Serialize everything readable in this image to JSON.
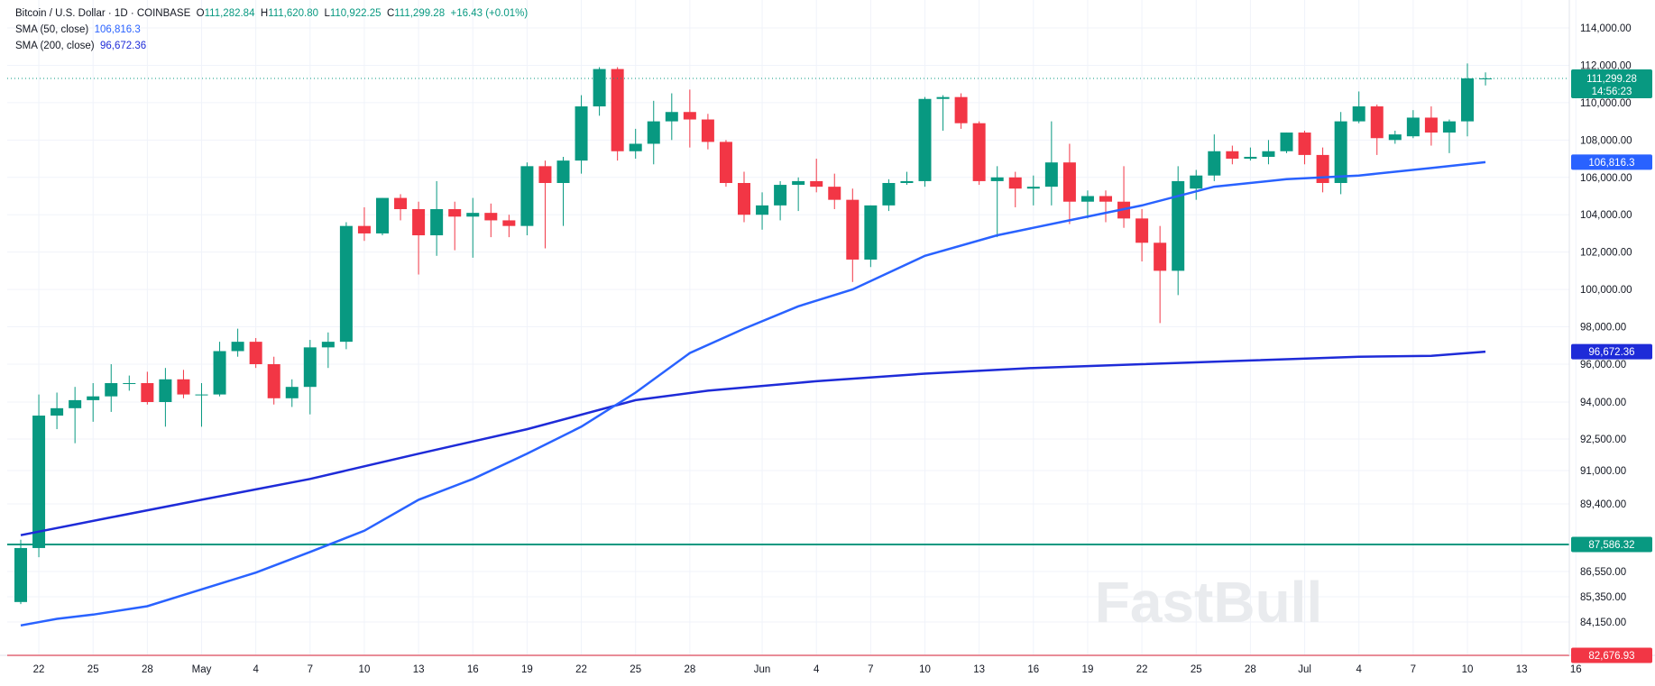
{
  "header": {
    "symbol": "Bitcoin / U.S. Dollar · 1D · COINBASE",
    "o_label": "O",
    "o_value": "111,282.84",
    "h_label": "H",
    "h_value": "111,620.80",
    "l_label": "L",
    "l_value": "110,922.25",
    "c_label": "C",
    "c_value": "111,299.28",
    "change": "+16.43 (+0.01%)",
    "sma50_label": "SMA (50, close)",
    "sma50_value": "106,816.3",
    "sma200_label": "SMA (200, close)",
    "sma200_value": "96,672.36"
  },
  "price_tag": {
    "price": "111,299.28",
    "countdown": "14:56:23"
  },
  "watermark": "FastBull",
  "colors": {
    "up": "#089981",
    "down": "#f23645",
    "sma50": "#2962ff",
    "sma200": "#1e2bd8",
    "hline_green": "#089981",
    "hline_red": "#f23645",
    "grid": "#f0f3fa"
  },
  "chart_data": {
    "type": "candlestick",
    "title": "Bitcoin / U.S. Dollar · 1D · COINBASE",
    "y_ticks": [
      {
        "v": 84150,
        "label": "84,150.00"
      },
      {
        "v": 85350,
        "label": "85,350.00"
      },
      {
        "v": 86550,
        "label": "86,550.00"
      },
      {
        "v": 89400,
        "label": "89,400.00"
      },
      {
        "v": 91000,
        "label": "91,000.00"
      },
      {
        "v": 92500,
        "label": "92,500.00"
      },
      {
        "v": 94000,
        "label": "94,000.00"
      },
      {
        "v": 96000,
        "label": "96,000.00"
      },
      {
        "v": 98000,
        "label": "98,000.00"
      },
      {
        "v": 100000,
        "label": "100,000.00"
      },
      {
        "v": 102000,
        "label": "102,000.00"
      },
      {
        "v": 104000,
        "label": "104,000.00"
      },
      {
        "v": 106000,
        "label": "106,000.00"
      },
      {
        "v": 108000,
        "label": "108,000.00"
      },
      {
        "v": 110000,
        "label": "110,000.00"
      },
      {
        "v": 112000,
        "label": "112,000.00"
      },
      {
        "v": 114000,
        "label": "114,000.00"
      }
    ],
    "x_ticks": [
      {
        "i": 1,
        "label": "22"
      },
      {
        "i": 4,
        "label": "25"
      },
      {
        "i": 7,
        "label": "28"
      },
      {
        "i": 10,
        "label": "May"
      },
      {
        "i": 13,
        "label": "4"
      },
      {
        "i": 16,
        "label": "7"
      },
      {
        "i": 19,
        "label": "10"
      },
      {
        "i": 22,
        "label": "13"
      },
      {
        "i": 25,
        "label": "16"
      },
      {
        "i": 28,
        "label": "19"
      },
      {
        "i": 31,
        "label": "22"
      },
      {
        "i": 34,
        "label": "25"
      },
      {
        "i": 37,
        "label": "28"
      },
      {
        "i": 41,
        "label": "Jun"
      },
      {
        "i": 44,
        "label": "4"
      },
      {
        "i": 47,
        "label": "7"
      },
      {
        "i": 50,
        "label": "10"
      },
      {
        "i": 53,
        "label": "13"
      },
      {
        "i": 56,
        "label": "16"
      },
      {
        "i": 59,
        "label": "19"
      },
      {
        "i": 62,
        "label": "22"
      },
      {
        "i": 65,
        "label": "25"
      },
      {
        "i": 68,
        "label": "28"
      },
      {
        "i": 71,
        "label": "Jul"
      },
      {
        "i": 74,
        "label": "4"
      },
      {
        "i": 77,
        "label": "7"
      },
      {
        "i": 80,
        "label": "10"
      },
      {
        "i": 83,
        "label": "13"
      },
      {
        "i": 86,
        "label": "16"
      }
    ],
    "candles": [
      {
        "o": 85100,
        "h": 87800,
        "l": 85000,
        "c": 87450
      },
      {
        "o": 87450,
        "h": 94400,
        "l": 87100,
        "c": 93450
      },
      {
        "o": 93450,
        "h": 94500,
        "l": 92900,
        "c": 93750
      },
      {
        "o": 93750,
        "h": 94800,
        "l": 92300,
        "c": 94100
      },
      {
        "o": 94100,
        "h": 95000,
        "l": 93200,
        "c": 94300
      },
      {
        "o": 94300,
        "h": 96000,
        "l": 93600,
        "c": 95000
      },
      {
        "o": 95000,
        "h": 95400,
        "l": 94600,
        "c": 95000
      },
      {
        "o": 95000,
        "h": 95600,
        "l": 93900,
        "c": 94000
      },
      {
        "o": 94000,
        "h": 95800,
        "l": 93000,
        "c": 95200
      },
      {
        "o": 95200,
        "h": 95700,
        "l": 94200,
        "c": 94400
      },
      {
        "o": 94400,
        "h": 95000,
        "l": 93000,
        "c": 94400
      },
      {
        "o": 94400,
        "h": 97200,
        "l": 94300,
        "c": 96700
      },
      {
        "o": 96700,
        "h": 97900,
        "l": 96400,
        "c": 97200
      },
      {
        "o": 97200,
        "h": 97400,
        "l": 95800,
        "c": 96000
      },
      {
        "o": 96000,
        "h": 96400,
        "l": 93900,
        "c": 94200
      },
      {
        "o": 94200,
        "h": 95200,
        "l": 93800,
        "c": 94800
      },
      {
        "o": 94800,
        "h": 97300,
        "l": 93500,
        "c": 96900
      },
      {
        "o": 96900,
        "h": 97700,
        "l": 95800,
        "c": 97200
      },
      {
        "o": 97200,
        "h": 103600,
        "l": 96800,
        "c": 103400
      },
      {
        "o": 103400,
        "h": 104400,
        "l": 102600,
        "c": 103000
      },
      {
        "o": 103000,
        "h": 104900,
        "l": 102900,
        "c": 104900
      },
      {
        "o": 104900,
        "h": 105100,
        "l": 103700,
        "c": 104300
      },
      {
        "o": 104300,
        "h": 104700,
        "l": 100800,
        "c": 102900
      },
      {
        "o": 102900,
        "h": 105800,
        "l": 101800,
        "c": 104300
      },
      {
        "o": 104300,
        "h": 104700,
        "l": 102100,
        "c": 103900
      },
      {
        "o": 103900,
        "h": 104900,
        "l": 101700,
        "c": 104100
      },
      {
        "o": 104100,
        "h": 104600,
        "l": 102800,
        "c": 103700
      },
      {
        "o": 103700,
        "h": 104000,
        "l": 102800,
        "c": 103400
      },
      {
        "o": 103400,
        "h": 106800,
        "l": 102900,
        "c": 106600
      },
      {
        "o": 106600,
        "h": 106900,
        "l": 102200,
        "c": 105700
      },
      {
        "o": 105700,
        "h": 107100,
        "l": 103400,
        "c": 106900
      },
      {
        "o": 106900,
        "h": 110400,
        "l": 106200,
        "c": 109800
      },
      {
        "o": 109800,
        "h": 111900,
        "l": 109300,
        "c": 111800
      },
      {
        "o": 111800,
        "h": 111900,
        "l": 106900,
        "c": 107400
      },
      {
        "o": 107400,
        "h": 108600,
        "l": 107000,
        "c": 107800
      },
      {
        "o": 107800,
        "h": 110100,
        "l": 106700,
        "c": 109000
      },
      {
        "o": 109000,
        "h": 110500,
        "l": 108000,
        "c": 109500
      },
      {
        "o": 109500,
        "h": 110700,
        "l": 107600,
        "c": 109100
      },
      {
        "o": 109100,
        "h": 109400,
        "l": 107500,
        "c": 107900
      },
      {
        "o": 107900,
        "h": 108000,
        "l": 105500,
        "c": 105700
      },
      {
        "o": 105700,
        "h": 106300,
        "l": 103600,
        "c": 104000
      },
      {
        "o": 104000,
        "h": 105200,
        "l": 103200,
        "c": 104500
      },
      {
        "o": 104500,
        "h": 105800,
        "l": 103700,
        "c": 105600
      },
      {
        "o": 105600,
        "h": 106000,
        "l": 104200,
        "c": 105800
      },
      {
        "o": 105800,
        "h": 107000,
        "l": 105200,
        "c": 105500
      },
      {
        "o": 105500,
        "h": 106200,
        "l": 104300,
        "c": 104800
      },
      {
        "o": 104800,
        "h": 105400,
        "l": 100400,
        "c": 101600
      },
      {
        "o": 101600,
        "h": 104500,
        "l": 101200,
        "c": 104500
      },
      {
        "o": 104500,
        "h": 105900,
        "l": 104200,
        "c": 105700
      },
      {
        "o": 105700,
        "h": 106300,
        "l": 105600,
        "c": 105800
      },
      {
        "o": 105800,
        "h": 110300,
        "l": 105500,
        "c": 110200
      },
      {
        "o": 110200,
        "h": 110400,
        "l": 108500,
        "c": 110300
      },
      {
        "o": 110300,
        "h": 110500,
        "l": 108600,
        "c": 108900
      },
      {
        "o": 108900,
        "h": 109000,
        "l": 105600,
        "c": 105800
      },
      {
        "o": 105800,
        "h": 106600,
        "l": 102800,
        "c": 106000
      },
      {
        "o": 106000,
        "h": 106300,
        "l": 104400,
        "c": 105400
      },
      {
        "o": 105400,
        "h": 106100,
        "l": 104500,
        "c": 105500
      },
      {
        "o": 105500,
        "h": 109000,
        "l": 104500,
        "c": 106800
      },
      {
        "o": 106800,
        "h": 107800,
        "l": 103500,
        "c": 104700
      },
      {
        "o": 104700,
        "h": 105300,
        "l": 103800,
        "c": 105000
      },
      {
        "o": 105000,
        "h": 105300,
        "l": 103600,
        "c": 104700
      },
      {
        "o": 104700,
        "h": 106600,
        "l": 103300,
        "c": 103800
      },
      {
        "o": 103800,
        "h": 104300,
        "l": 101500,
        "c": 102500
      },
      {
        "o": 102500,
        "h": 103400,
        "l": 98200,
        "c": 101000
      },
      {
        "o": 101000,
        "h": 106600,
        "l": 99700,
        "c": 105800
      },
      {
        "o": 105400,
        "h": 106400,
        "l": 104800,
        "c": 106100
      },
      {
        "o": 106100,
        "h": 108300,
        "l": 105800,
        "c": 107400
      },
      {
        "o": 107400,
        "h": 107700,
        "l": 106700,
        "c": 107000
      },
      {
        "o": 107000,
        "h": 107600,
        "l": 106900,
        "c": 107100
      },
      {
        "o": 107100,
        "h": 108000,
        "l": 106700,
        "c": 107400
      },
      {
        "o": 107400,
        "h": 108400,
        "l": 107300,
        "c": 108400
      },
      {
        "o": 108400,
        "h": 108500,
        "l": 106700,
        "c": 107200
      },
      {
        "o": 107200,
        "h": 107600,
        "l": 105200,
        "c": 105700
      },
      {
        "o": 105700,
        "h": 109500,
        "l": 105100,
        "c": 109000
      },
      {
        "o": 109000,
        "h": 110600,
        "l": 108900,
        "c": 109800
      },
      {
        "o": 109800,
        "h": 109900,
        "l": 107200,
        "c": 108100
      },
      {
        "o": 108000,
        "h": 108500,
        "l": 107800,
        "c": 108300
      },
      {
        "o": 108200,
        "h": 109600,
        "l": 108100,
        "c": 109200
      },
      {
        "o": 109200,
        "h": 109800,
        "l": 107700,
        "c": 108400
      },
      {
        "o": 108400,
        "h": 109100,
        "l": 107300,
        "c": 109000
      },
      {
        "o": 109000,
        "h": 112100,
        "l": 108200,
        "c": 111300
      },
      {
        "o": 111283,
        "h": 111621,
        "l": 110922,
        "c": 111299
      }
    ],
    "sma50": [
      [
        0,
        84000
      ],
      [
        2,
        84300
      ],
      [
        4,
        84500
      ],
      [
        7,
        84900
      ],
      [
        10,
        85700
      ],
      [
        13,
        86500
      ],
      [
        16,
        87300
      ],
      [
        19,
        88200
      ],
      [
        22,
        89600
      ],
      [
        25,
        90600
      ],
      [
        28,
        91800
      ],
      [
        31,
        93000
      ],
      [
        34,
        94500
      ],
      [
        37,
        96600
      ],
      [
        40,
        97900
      ],
      [
        43,
        99100
      ],
      [
        46,
        100000
      ],
      [
        50,
        101800
      ],
      [
        54,
        102900
      ],
      [
        58,
        103700
      ],
      [
        62,
        104500
      ],
      [
        66,
        105500
      ],
      [
        70,
        105900
      ],
      [
        74,
        106100
      ],
      [
        78,
        106500
      ],
      [
        81,
        106816
      ]
    ],
    "sma200": [
      [
        0,
        88000
      ],
      [
        5,
        88800
      ],
      [
        10,
        89600
      ],
      [
        16,
        90600
      ],
      [
        22,
        91800
      ],
      [
        28,
        92900
      ],
      [
        34,
        94100
      ],
      [
        38,
        94600
      ],
      [
        44,
        95100
      ],
      [
        50,
        95500
      ],
      [
        56,
        95800
      ],
      [
        62,
        96000
      ],
      [
        68,
        96200
      ],
      [
        74,
        96400
      ],
      [
        78,
        96450
      ],
      [
        81,
        96672
      ]
    ],
    "hlines": [
      {
        "name": "green-horizontal-line",
        "value": 87586.32,
        "label": "87,586.32",
        "color": "#089981"
      },
      {
        "name": "red-horizontal-line",
        "value": 82676.93,
        "label": "82,676.93",
        "color": "#f23645"
      }
    ],
    "last_price": 111299.28,
    "sma50_last_label": "106,816.3",
    "sma200_last_label": "96,672.36"
  }
}
